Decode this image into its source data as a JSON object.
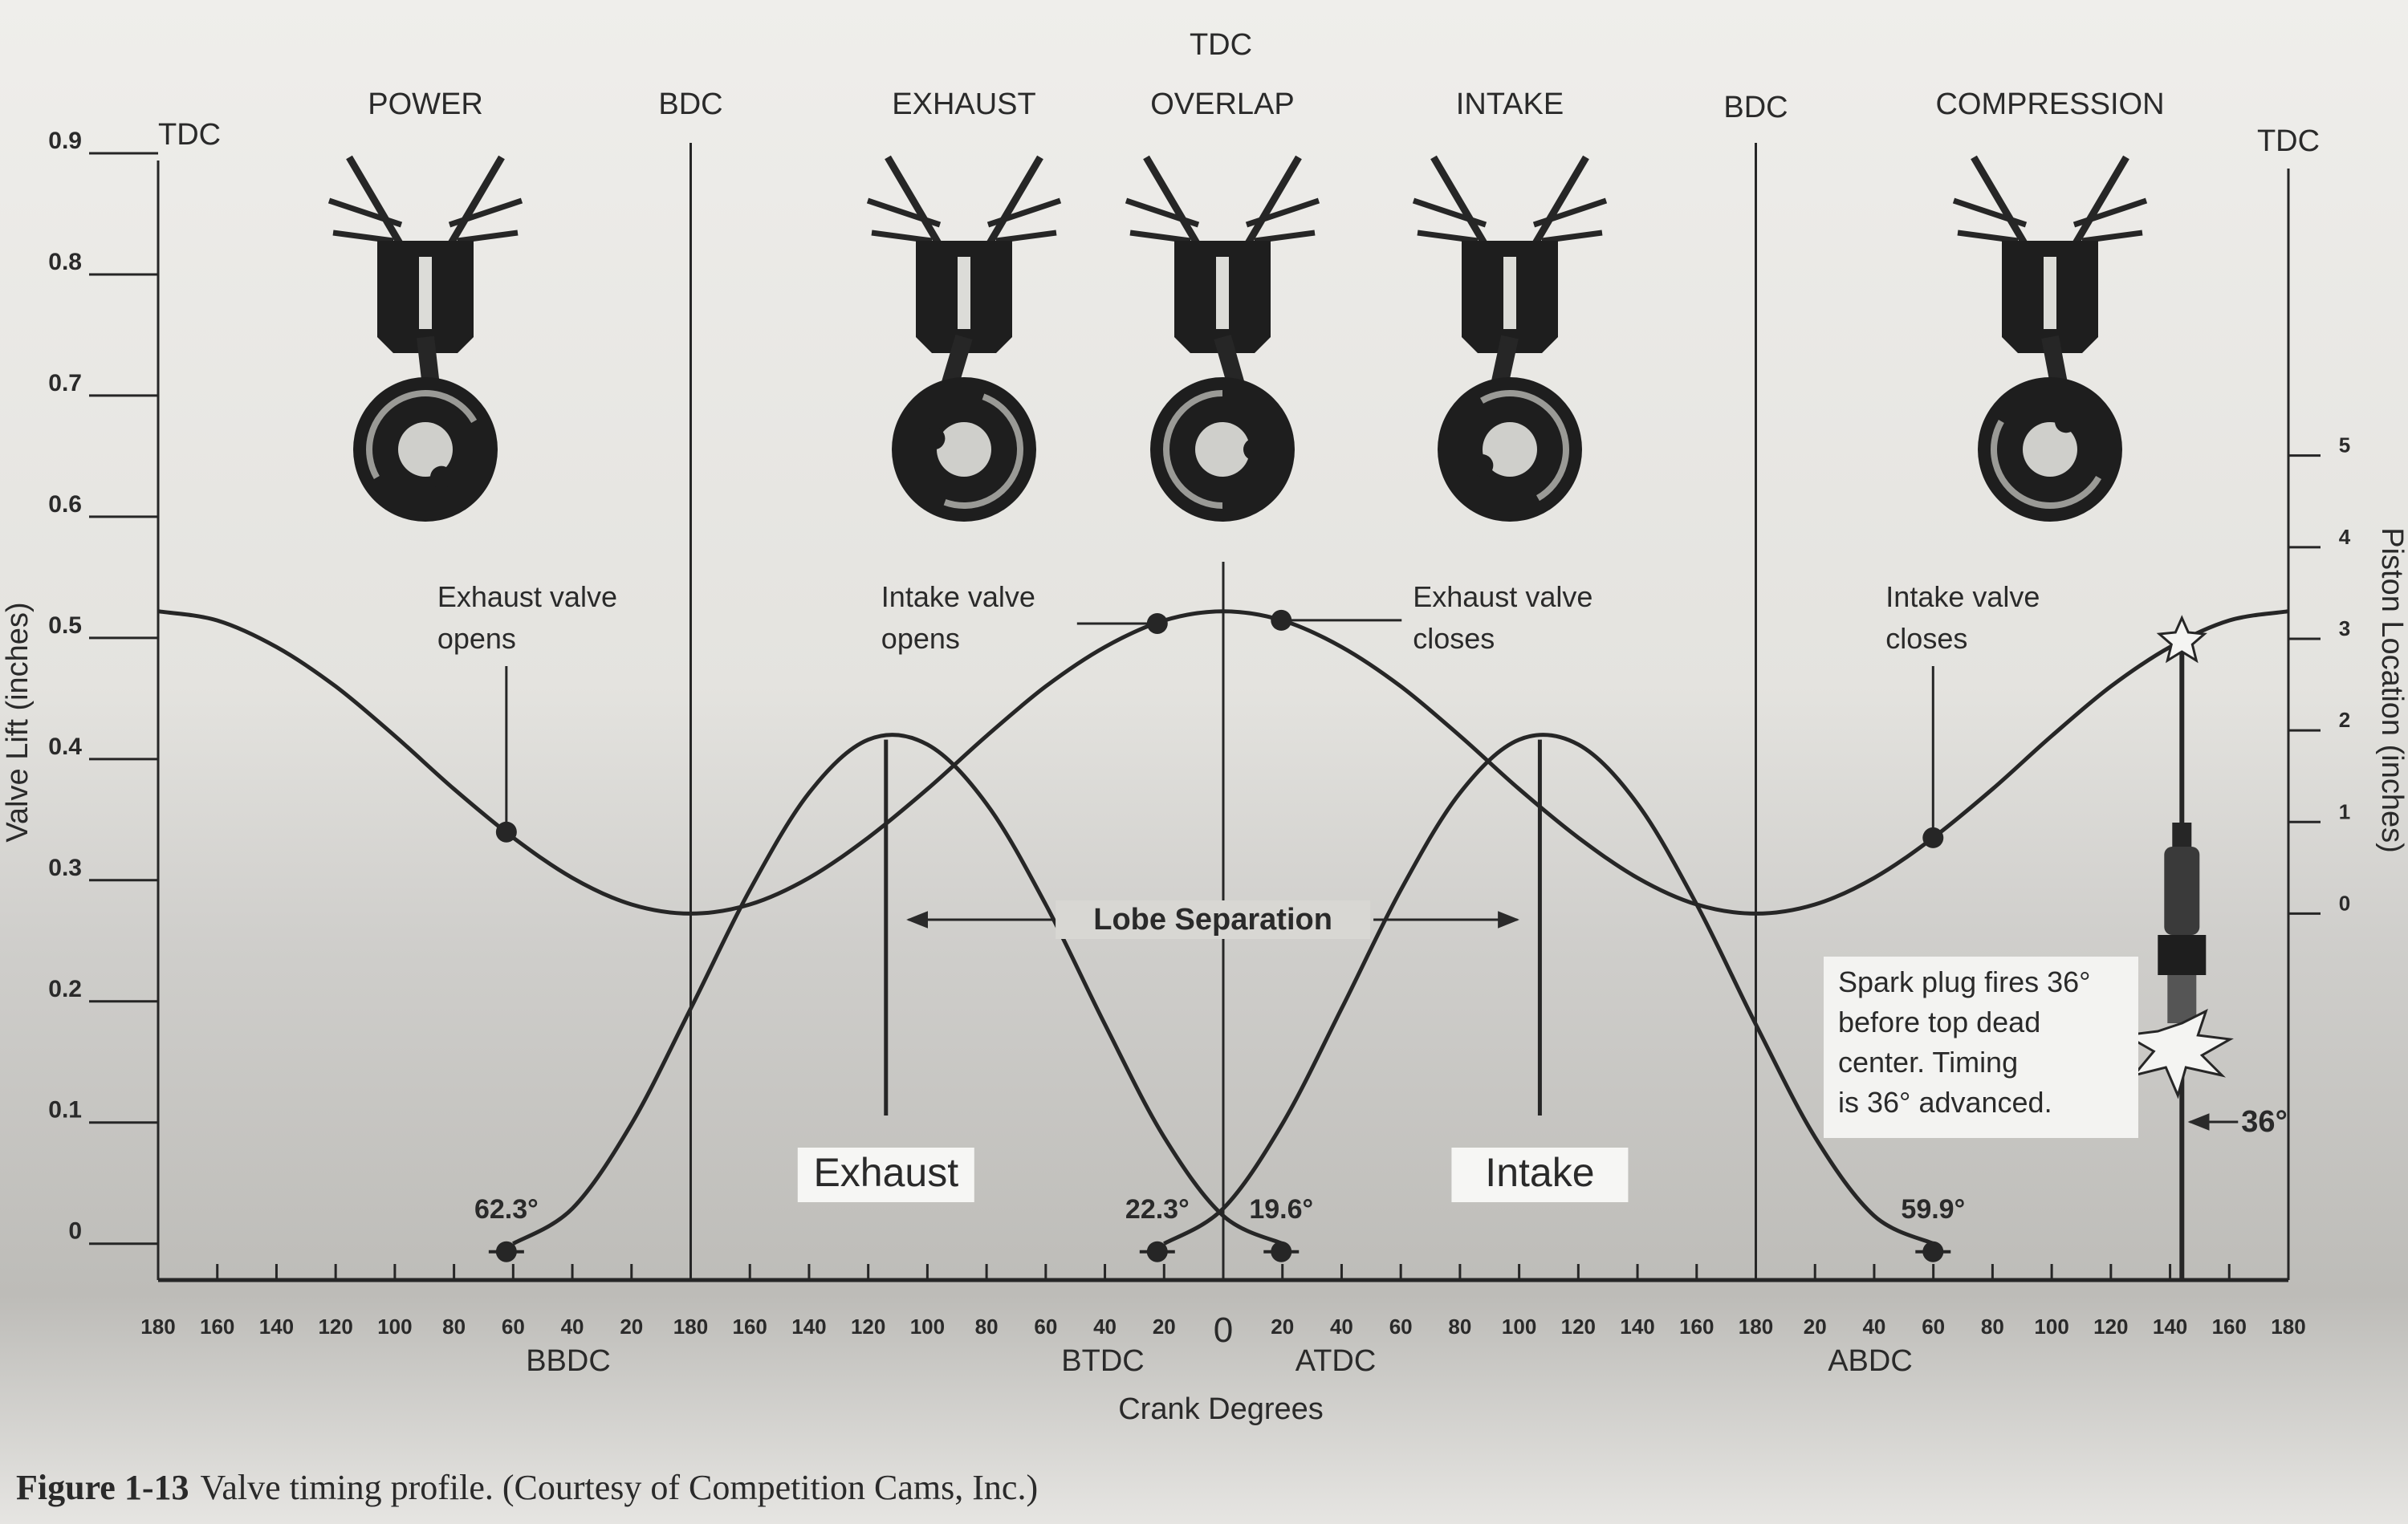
{
  "chart_data": {
    "type": "line",
    "dead_centers": [
      "TDC",
      "BDC",
      "TDC",
      "BDC",
      "TDC"
    ],
    "strokes": [
      "POWER",
      "EXHAUST",
      "OVERLAP",
      "INTAKE",
      "COMPRESSION"
    ],
    "x": [
      0,
      20,
      40,
      60,
      80,
      100,
      120,
      140,
      160,
      180,
      200,
      220,
      240,
      260,
      280,
      300,
      320,
      340,
      360,
      380,
      400,
      420,
      440,
      460,
      480,
      500,
      520,
      540,
      560,
      580,
      600,
      620,
      640,
      660,
      680,
      700,
      720
    ],
    "xlim": [
      0,
      720
    ],
    "xticks": [
      {
        "value": 0,
        "label": "180"
      },
      {
        "value": 20,
        "label": "160"
      },
      {
        "value": 40,
        "label": "140"
      },
      {
        "value": 60,
        "label": "120"
      },
      {
        "value": 80,
        "label": "100"
      },
      {
        "value": 100,
        "label": "80"
      },
      {
        "value": 120,
        "label": "60"
      },
      {
        "value": 140,
        "label": "40"
      },
      {
        "value": 160,
        "label": "20"
      },
      {
        "value": 180,
        "label": "180"
      },
      {
        "value": 200,
        "label": "160"
      },
      {
        "value": 220,
        "label": "140"
      },
      {
        "value": 240,
        "label": "120"
      },
      {
        "value": 260,
        "label": "100"
      },
      {
        "value": 280,
        "label": "80"
      },
      {
        "value": 300,
        "label": "60"
      },
      {
        "value": 320,
        "label": "40"
      },
      {
        "value": 340,
        "label": "20"
      },
      {
        "value": 360,
        "label": "0"
      },
      {
        "value": 380,
        "label": "20"
      },
      {
        "value": 400,
        "label": "40"
      },
      {
        "value": 420,
        "label": "60"
      },
      {
        "value": 440,
        "label": "80"
      },
      {
        "value": 460,
        "label": "100"
      },
      {
        "value": 480,
        "label": "120"
      },
      {
        "value": 500,
        "label": "140"
      },
      {
        "value": 520,
        "label": "160"
      },
      {
        "value": 540,
        "label": "180"
      },
      {
        "value": 560,
        "label": "20"
      },
      {
        "value": 580,
        "label": "40"
      },
      {
        "value": 600,
        "label": "60"
      },
      {
        "value": 620,
        "label": "80"
      },
      {
        "value": 640,
        "label": "100"
      },
      {
        "value": 660,
        "label": "120"
      },
      {
        "value": 680,
        "label": "140"
      },
      {
        "value": 700,
        "label": "160"
      },
      {
        "value": 720,
        "label": "180"
      }
    ],
    "x_sublabels": [
      "BBDC",
      "BTDC",
      "ATDC",
      "ABDC"
    ],
    "xlabel": "Crank Degrees",
    "ylim": [
      -0.03,
      0.9
    ],
    "yticks": [
      0,
      0.1,
      0.2,
      0.3,
      0.4,
      0.5,
      0.6,
      0.7,
      0.8,
      0.9
    ],
    "ylabel": "Valve Lift (inches)",
    "y2lim": [
      -4,
      8.3
    ],
    "y2ticks": [
      0,
      1,
      2,
      3,
      4,
      5
    ],
    "y2label": "Piston Location (inches)",
    "series": [
      {
        "color": "#262626",
        "axis": "y2",
        "values": [
          3.3,
          3.2,
          2.91,
          2.48,
          1.94,
          1.36,
          0.83,
          0.39,
          0.1,
          0,
          0.1,
          0.39,
          0.83,
          1.36,
          1.94,
          2.48,
          2.91,
          3.2,
          3.3,
          3.2,
          2.91,
          2.48,
          1.94,
          1.36,
          0.83,
          0.39,
          0.1,
          0,
          0.1,
          0.39,
          0.83,
          1.36,
          1.94,
          2.48,
          2.91,
          3.2,
          3.3
        ]
      },
      {
        "name": "Exhaust",
        "color": "#262626",
        "values": [
          null,
          null,
          null,
          null,
          null,
          null,
          0,
          0.029,
          0.099,
          0.194,
          0.292,
          0.372,
          0.416,
          0.412,
          0.363,
          0.28,
          0.181,
          0.088,
          0.023,
          0,
          null,
          null,
          null,
          null,
          null,
          null,
          null,
          null,
          null,
          null,
          null,
          null,
          null,
          null,
          null,
          null,
          null
        ]
      },
      {
        "name": "Intake",
        "color": "#262626",
        "values": [
          null,
          null,
          null,
          null,
          null,
          null,
          null,
          null,
          null,
          null,
          null,
          null,
          null,
          null,
          null,
          null,
          null,
          0,
          0.029,
          0.099,
          0.194,
          0.292,
          0.372,
          0.416,
          0.412,
          0.363,
          0.28,
          0.181,
          0.088,
          0.023,
          0,
          null,
          null,
          null,
          null,
          null,
          null
        ]
      }
    ],
    "events": [
      {
        "x": 117.7,
        "label": "62.3°",
        "note": [
          "Exhaust valve",
          "opens"
        ]
      },
      {
        "x": 337.7,
        "label": "22.3°",
        "note": [
          "Intake valve",
          "opens"
        ]
      },
      {
        "x": 379.6,
        "label": "19.6°",
        "note": [
          "Exhaust valve",
          "closes"
        ]
      },
      {
        "x": 599.9,
        "label": "59.9°",
        "note": [
          "Intake valve",
          "closes"
        ]
      }
    ],
    "lobe_centerlines": [
      246,
      467
    ],
    "lobe_label": "Lobe Separation",
    "spark": {
      "x": 684,
      "note": [
        "Spark plug fires 36°",
        "before top dead",
        "center. Timing",
        "is 36° advanced."
      ],
      "label": "36°"
    },
    "caption": {
      "number": "Figure 1-13",
      "text": "Valve timing profile. (Courtesy of Competition Cams, Inc.)"
    }
  }
}
